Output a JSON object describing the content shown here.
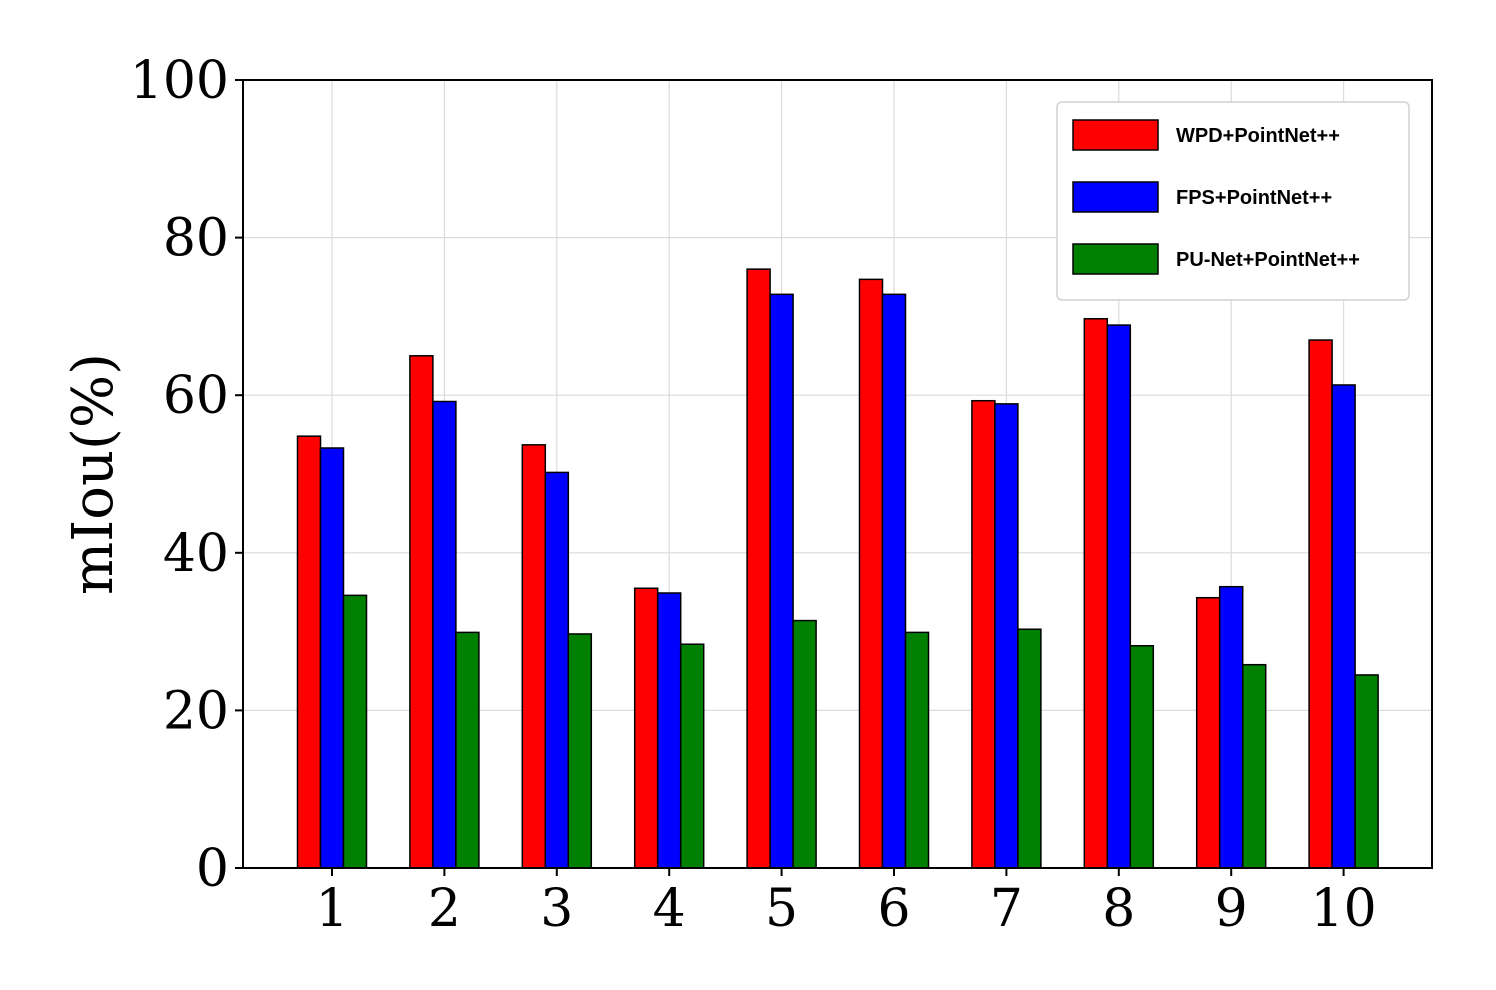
{
  "chart_data": {
    "type": "bar",
    "title": "",
    "xlabel": "",
    "ylabel": "mIou(%)",
    "ylim": [
      0,
      100
    ],
    "yticks": [
      "0",
      "20",
      "40",
      "60",
      "80",
      "100"
    ],
    "categories": [
      "1",
      "2",
      "3",
      "4",
      "5",
      "6",
      "7",
      "8",
      "9",
      "10"
    ],
    "grid": true,
    "legend_position": "top-right",
    "series": [
      {
        "name": "WPD+PointNet++",
        "color": "#ff0000",
        "values": [
          54.8,
          65.0,
          53.7,
          35.5,
          76.0,
          74.7,
          59.3,
          69.7,
          34.3,
          67.0
        ]
      },
      {
        "name": "FPS+PointNet++",
        "color": "#0000ff",
        "values": [
          53.3,
          59.2,
          50.2,
          34.9,
          72.8,
          72.8,
          58.9,
          68.9,
          35.7,
          61.3
        ]
      },
      {
        "name": "PU-Net+PointNet++",
        "color": "#008000",
        "values": [
          34.6,
          29.9,
          29.7,
          28.4,
          31.4,
          29.9,
          30.3,
          28.2,
          25.8,
          24.5
        ]
      }
    ]
  }
}
